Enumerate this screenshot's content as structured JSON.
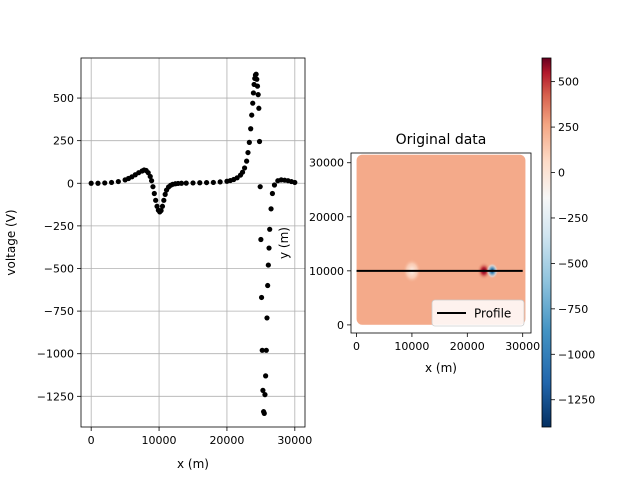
{
  "chart_data": [
    {
      "type": "scatter",
      "title": "",
      "xlabel": "x (m)",
      "ylabel": "voltage (V)",
      "xlim": [
        -1500,
        31500
      ],
      "ylim": [
        -1430,
        735
      ],
      "grid": true,
      "xticks": [
        0,
        10000,
        20000,
        30000
      ],
      "xtick_labels": [
        "0",
        "10000",
        "20000",
        "30000"
      ],
      "yticks": [
        500,
        250,
        0,
        -250,
        -500,
        -750,
        -1000,
        -1250
      ],
      "ytick_labels": [
        "500",
        "250",
        "0",
        "−250",
        "−500",
        "−750",
        "−1000",
        "−1250"
      ],
      "marker_color": "#000000",
      "series": [
        {
          "x": [
            0,
            1000,
            2000,
            3000,
            4000,
            5000,
            5500,
            6000,
            6500,
            7000,
            7500,
            7800,
            8100,
            8400,
            8700,
            8900,
            9100,
            9300,
            9500,
            9700,
            9900,
            10100,
            10300,
            10500,
            10700,
            10900,
            11100,
            11400,
            11700,
            12000,
            12400,
            12800,
            13300,
            14000,
            15000,
            16000,
            17000,
            18000,
            19000,
            20000,
            20500,
            21000,
            21500,
            22000,
            22300,
            22600,
            22900,
            23100,
            23300,
            23500,
            23650,
            23800,
            23900,
            24000,
            24100,
            24200,
            24300,
            24400,
            24500,
            24600,
            24700,
            24800,
            24900,
            25000,
            25100,
            25200,
            25300,
            25400,
            25500,
            25600,
            25700,
            25800,
            25900,
            26000,
            26100,
            26200,
            26300,
            26500,
            26700,
            27000,
            27500,
            28000,
            28500,
            29000,
            29500,
            30000
          ],
          "y": [
            0,
            0,
            2,
            5,
            10,
            20,
            28,
            38,
            50,
            62,
            72,
            78,
            75,
            62,
            40,
            15,
            -20,
            -60,
            -100,
            -135,
            -158,
            -168,
            -160,
            -135,
            -100,
            -65,
            -40,
            -22,
            -12,
            -6,
            -3,
            -1,
            0,
            1,
            2,
            3,
            4,
            5,
            8,
            12,
            16,
            22,
            32,
            48,
            65,
            90,
            130,
            180,
            240,
            320,
            400,
            470,
            530,
            580,
            615,
            635,
            640,
            610,
            570,
            520,
            440,
            245,
            -20,
            -330,
            -670,
            -980,
            -1215,
            -1340,
            -1350,
            -1240,
            -1130,
            -980,
            -790,
            -600,
            -480,
            -380,
            -270,
            -150,
            -60,
            -10,
            15,
            20,
            18,
            15,
            10,
            5
          ],
          "y2": [
            null,
            null,
            null,
            null,
            null,
            null,
            null,
            null,
            null,
            null,
            null,
            null,
            null,
            null,
            null,
            null,
            null,
            null,
            null,
            null,
            null,
            null,
            null,
            null,
            null,
            null,
            null,
            null,
            null,
            null,
            null,
            null,
            null,
            null,
            null,
            null,
            null,
            null,
            null,
            null,
            null,
            null,
            null,
            null,
            null,
            null,
            null,
            null,
            null,
            null,
            null,
            null,
            null,
            null,
            null,
            null,
            null,
            null,
            null,
            null,
            null,
            null,
            null,
            null,
            null,
            null,
            null,
            null,
            null,
            null,
            null,
            null,
            null,
            null,
            null,
            null,
            null,
            null,
            null,
            null,
            null,
            null,
            null,
            null,
            null,
            null
          ]
        }
      ]
    },
    {
      "type": "heatmap",
      "title": "Original data",
      "xlabel": "x (m)",
      "ylabel": "y (m)",
      "xlim": [
        -1000,
        31500
      ],
      "ylim": [
        -1500,
        31800
      ],
      "xticks": [
        0,
        10000,
        20000,
        30000
      ],
      "xtick_labels": [
        "0",
        "10000",
        "20000",
        "30000"
      ],
      "yticks": [
        0,
        10000,
        20000,
        30000
      ],
      "ytick_labels": [
        "0",
        "10000",
        "20000",
        "30000"
      ],
      "field_extent": [
        0,
        30500,
        0,
        31500
      ],
      "background_color": "#f4aa8a",
      "anomalies": [
        {
          "x": 10000,
          "y": 10000,
          "kind": "dipole-weak"
        },
        {
          "x": 23000,
          "y": 10000,
          "kind": "positive-strong"
        },
        {
          "x": 24500,
          "y": 10000,
          "kind": "negative-strong"
        }
      ],
      "profile": {
        "x": [
          0,
          30000
        ],
        "y": [
          10000,
          10000
        ],
        "color": "#000000"
      },
      "legend": {
        "entries": [
          "Profile"
        ],
        "placement": "lower right"
      },
      "colorbar": {
        "vmin": -1400,
        "vmax": 630,
        "ticks": [
          500,
          250,
          0,
          -250,
          -500,
          -750,
          -1000,
          -1250
        ],
        "tick_labels": [
          "500",
          "250",
          "0",
          "−250",
          "−500",
          "−750",
          "−1000",
          "−1250"
        ],
        "colormap": "RdBu_r"
      }
    }
  ]
}
